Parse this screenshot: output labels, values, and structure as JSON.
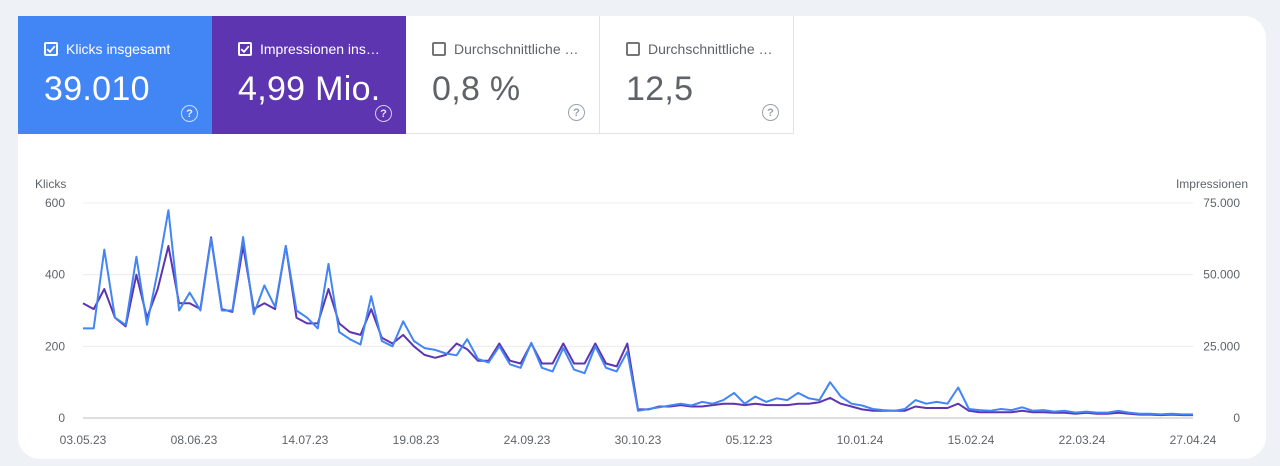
{
  "metrics": [
    {
      "label": "Klicks insgesamt",
      "value": "39.010",
      "checked": true,
      "color": "#4285f4",
      "icon": "help-icon"
    },
    {
      "label": "Impressionen ins…",
      "value": "4,99 Mio.",
      "checked": true,
      "color": "#5e35b1",
      "icon": "help-icon"
    },
    {
      "label": "Durchschnittliche …",
      "value": "0,8 %",
      "checked": false,
      "icon": "help-icon"
    },
    {
      "label": "Durchschnittliche …",
      "value": "12,5",
      "checked": false,
      "icon": "help-icon"
    }
  ],
  "chart_data": {
    "type": "line",
    "left_axis_label": "Klicks",
    "right_axis_label": "Impressionen",
    "left_ticks": [
      "600",
      "400",
      "200",
      "0"
    ],
    "right_ticks": [
      "75.000",
      "50.000",
      "25.000",
      "0"
    ],
    "left_ylim": [
      0,
      600
    ],
    "right_ylim": [
      0,
      75000
    ],
    "x_ticks": [
      "03.05.23",
      "08.06.23",
      "14.07.23",
      "19.08.23",
      "24.09.23",
      "30.10.23",
      "05.12.23",
      "10.01.24",
      "15.02.24",
      "22.03.24",
      "27.04.24"
    ],
    "grid": true,
    "series": [
      {
        "name": "Klicks insgesamt",
        "color": "#4285f4",
        "axis": "left",
        "values": [
          250,
          250,
          470,
          280,
          260,
          450,
          260,
          410,
          580,
          300,
          350,
          300,
          500,
          300,
          300,
          505,
          290,
          370,
          310,
          480,
          300,
          280,
          250,
          430,
          240,
          220,
          205,
          340,
          215,
          200,
          270,
          215,
          195,
          190,
          180,
          175,
          220,
          165,
          155,
          200,
          150,
          140,
          210,
          140,
          130,
          195,
          135,
          125,
          200,
          140,
          130,
          185,
          20,
          25,
          30,
          35,
          40,
          35,
          45,
          40,
          50,
          70,
          40,
          60,
          45,
          55,
          50,
          70,
          55,
          50,
          100,
          60,
          40,
          35,
          25,
          22,
          20,
          25,
          50,
          40,
          45,
          40,
          85,
          25,
          22,
          20,
          25,
          22,
          30,
          20,
          22,
          18,
          20,
          15,
          18,
          15,
          15,
          20,
          15,
          12,
          12,
          10,
          12,
          10,
          10
        ]
      },
      {
        "name": "Impressionen insgesamt",
        "color": "#5e35b1",
        "axis": "right",
        "values": [
          40000,
          38000,
          45000,
          35000,
          32000,
          50000,
          35000,
          45000,
          60000,
          40000,
          40000,
          38000,
          63000,
          38000,
          37000,
          60000,
          38000,
          40000,
          38000,
          60000,
          35000,
          33000,
          33000,
          45000,
          33000,
          30000,
          29000,
          38000,
          28000,
          26000,
          29000,
          25000,
          22000,
          21000,
          22000,
          26000,
          24000,
          20000,
          20000,
          26000,
          20000,
          19000,
          26000,
          19000,
          19000,
          26000,
          19000,
          19000,
          26000,
          19000,
          18000,
          26000,
          3000,
          3000,
          4000,
          4000,
          4500,
          4000,
          4000,
          4500,
          5000,
          5000,
          4500,
          5000,
          4500,
          4500,
          4500,
          5000,
          5000,
          5500,
          7000,
          5000,
          4000,
          3000,
          2500,
          2500,
          2500,
          2500,
          4000,
          3500,
          3500,
          3500,
          5000,
          2500,
          2000,
          2000,
          2000,
          2000,
          2500,
          2000,
          2000,
          1800,
          1800,
          1500,
          1800,
          1500,
          1500,
          1800,
          1500,
          1200,
          1200,
          1000,
          1200,
          1000,
          1000
        ]
      }
    ]
  }
}
